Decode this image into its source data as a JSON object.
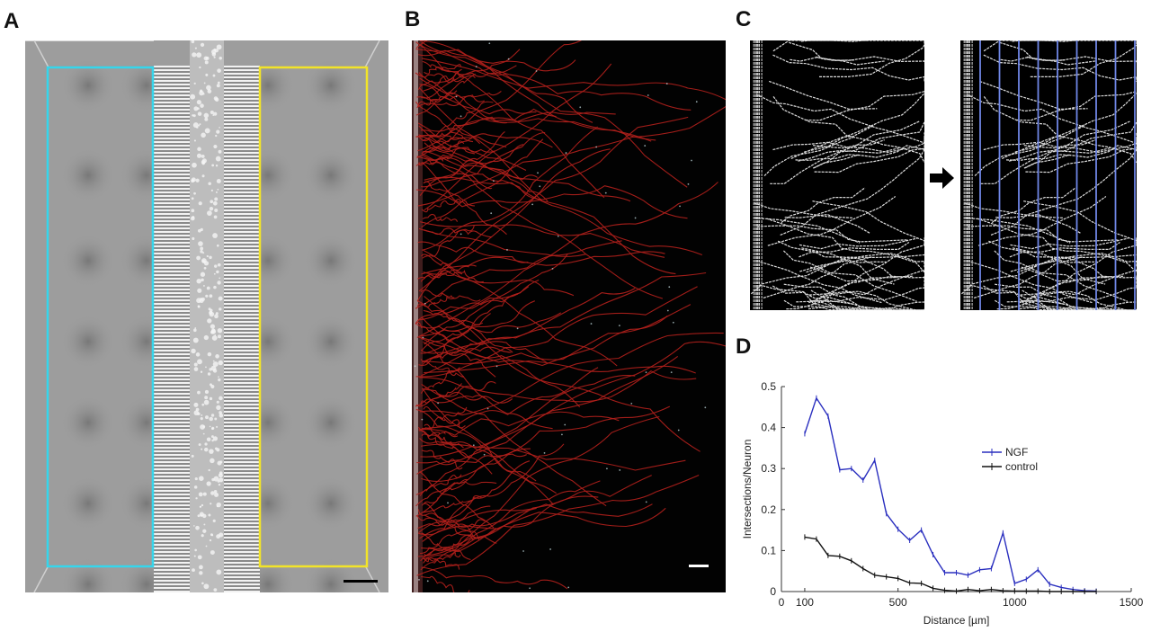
{
  "panels": {
    "a": "A",
    "b": "B",
    "c": "C",
    "d": "D"
  },
  "colors": {
    "cyan_box": "#35d6ec",
    "yellow_box": "#f2e428",
    "neurite_red": "#b3201c",
    "grid_blue": "#6f86e6",
    "ngf_line": "#2a2fbf",
    "control_line": "#111111"
  },
  "icons": {
    "arrow": "right-arrow-icon"
  },
  "chart_data": {
    "type": "line",
    "title": "",
    "xlabel": "Distance [µm]",
    "ylabel": "Intersections/Neuron",
    "xlim": [
      0,
      1500
    ],
    "ylim": [
      0,
      0.5
    ],
    "xticks": [
      0,
      100,
      500,
      1000,
      1500
    ],
    "yticks": [
      0,
      0.1,
      0.2,
      0.3,
      0.4,
      0.5
    ],
    "grid": false,
    "legend_position": "center-right",
    "series": [
      {
        "name": "NGF",
        "color": "#2a2fbf",
        "x": [
          100,
          150,
          200,
          250,
          300,
          350,
          400,
          450,
          500,
          550,
          600,
          650,
          700,
          750,
          800,
          850,
          900,
          950,
          1000,
          1050,
          1100,
          1150,
          1200,
          1250,
          1300,
          1350
        ],
        "y": [
          0.385,
          0.472,
          0.428,
          0.297,
          0.3,
          0.272,
          0.32,
          0.19,
          0.152,
          0.125,
          0.15,
          0.09,
          0.046,
          0.046,
          0.04,
          0.053,
          0.056,
          0.143,
          0.02,
          0.03,
          0.053,
          0.018,
          0.01,
          0.005,
          0.002,
          0.001
        ]
      },
      {
        "name": "control",
        "color": "#111111",
        "x": [
          100,
          150,
          200,
          250,
          300,
          350,
          400,
          450,
          500,
          550,
          600,
          650,
          700,
          750,
          800,
          850,
          900,
          950,
          1000,
          1050,
          1100,
          1150,
          1200,
          1250,
          1300,
          1350
        ],
        "y": [
          0.133,
          0.128,
          0.088,
          0.086,
          0.075,
          0.056,
          0.04,
          0.036,
          0.032,
          0.021,
          0.02,
          0.008,
          0.003,
          0.001,
          0.005,
          0.002,
          0.005,
          0.002,
          0.001,
          0.001,
          0.001,
          0,
          0,
          0,
          0,
          0
        ]
      }
    ]
  }
}
